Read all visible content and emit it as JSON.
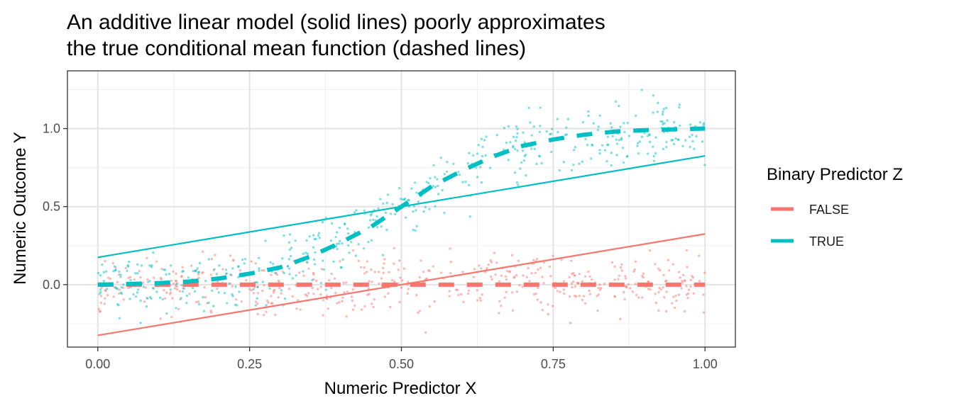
{
  "chart_data": {
    "type": "scatter",
    "title_lines": [
      "An additive linear model (solid lines) poorly approximates",
      "the true conditional mean function (dashed lines)"
    ],
    "xlabel": "Numeric Predictor X",
    "ylabel": "Numeric Outcome Y",
    "xlim": [
      -0.05,
      1.05
    ],
    "ylim": [
      -0.4,
      1.37
    ],
    "x_ticks": [
      0,
      0.25,
      0.5,
      0.75,
      1
    ],
    "x_tick_labels": [
      "0.00",
      "0.25",
      "0.50",
      "0.75",
      "1.00"
    ],
    "y_ticks": [
      0,
      0.5,
      1
    ],
    "y_tick_labels": [
      "0.0",
      "0.5",
      "1.0"
    ],
    "grid": true,
    "legend": {
      "title": "Binary Predictor Z",
      "position": "right",
      "entries": [
        "FALSE",
        "TRUE"
      ]
    },
    "series": [
      {
        "name": "FALSE",
        "color": "#F8766D",
        "scatter_model": "y = 0 + noise (sd ~0.1)",
        "linear_fit": {
          "x": [
            0,
            1
          ],
          "y": [
            -0.325,
            0.325
          ]
        },
        "true_mean": {
          "x": [
            0,
            0.25,
            0.5,
            0.75,
            1
          ],
          "y": [
            0,
            0,
            0,
            0,
            0
          ]
        }
      },
      {
        "name": "TRUE",
        "color": "#00BFC4",
        "scatter_model": "y = logistic mean + noise (sd ~0.1)",
        "linear_fit": {
          "x": [
            0,
            1
          ],
          "y": [
            0.175,
            0.825
          ]
        },
        "true_mean": {
          "x": [
            0,
            0.05,
            0.1,
            0.15,
            0.2,
            0.25,
            0.3,
            0.35,
            0.4,
            0.45,
            0.5,
            0.55,
            0.6,
            0.65,
            0.7,
            0.75,
            0.8,
            0.85,
            0.9,
            0.95,
            1
          ],
          "y": [
            0.0,
            0.004,
            0.01,
            0.02,
            0.04,
            0.07,
            0.11,
            0.18,
            0.27,
            0.37,
            0.5,
            0.63,
            0.73,
            0.82,
            0.89,
            0.93,
            0.96,
            0.98,
            0.99,
            0.995,
            1.0
          ]
        }
      }
    ]
  }
}
